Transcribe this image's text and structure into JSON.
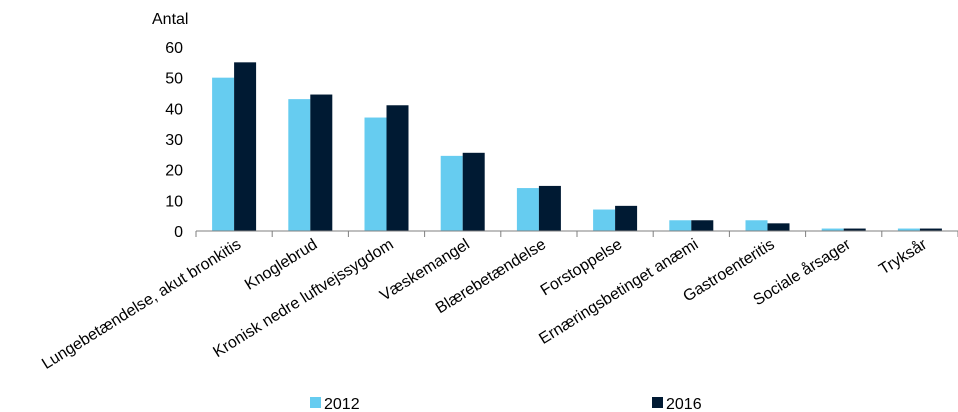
{
  "chart_data": {
    "type": "bar",
    "title": "",
    "xlabel": "",
    "ylabel": "Antal",
    "ylim": [
      0,
      60
    ],
    "yticks": [
      0,
      10,
      20,
      30,
      40,
      50,
      60
    ],
    "grid": false,
    "legend": "bottom",
    "categories": [
      "Lungebetændelse, akut bronkitis",
      "Knoglebrud",
      "Kronisk nedre luftvejssygdom",
      "Væskemangel",
      "Blærebetændelse",
      "Forstoppelse",
      "Ernæringsbetinget anæmi",
      "Gastroenteritis",
      "Sociale årsager",
      "Tryksår"
    ],
    "series": [
      {
        "name": "2012",
        "color": "#66ccf0",
        "values": [
          50,
          43,
          37,
          24.5,
          14,
          7,
          3.5,
          3.5,
          0.8,
          0.8
        ]
      },
      {
        "name": "2016",
        "color": "#001a33",
        "values": [
          55,
          44.5,
          41,
          25.5,
          14.7,
          8.2,
          3.5,
          2.5,
          0.8,
          0.8
        ]
      }
    ]
  }
}
